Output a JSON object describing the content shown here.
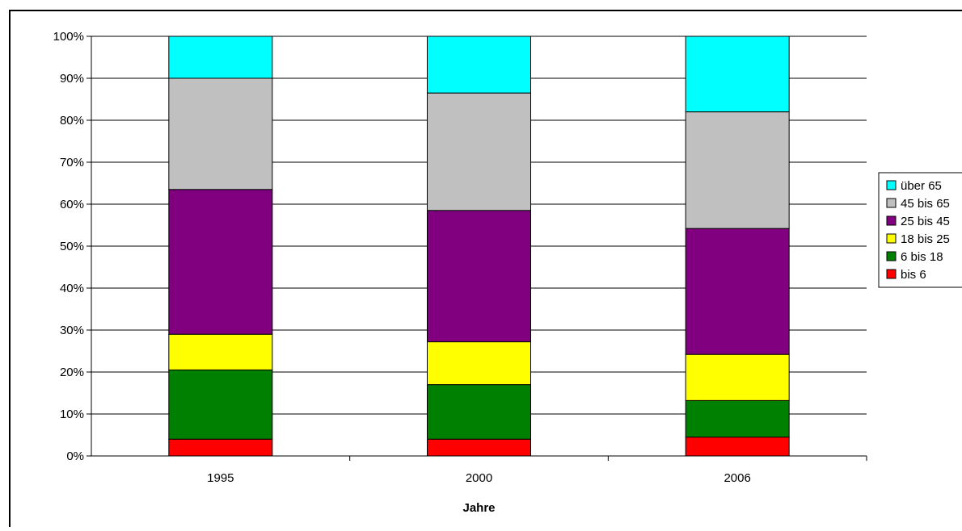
{
  "chart_data": {
    "type": "bar",
    "stacked": true,
    "normalized": true,
    "title": "",
    "xlabel": "Jahre",
    "ylabel": "",
    "ylim": [
      0,
      100
    ],
    "y_ticks": [
      "0%",
      "10%",
      "20%",
      "30%",
      "40%",
      "50%",
      "60%",
      "70%",
      "80%",
      "90%",
      "100%"
    ],
    "grid": true,
    "legend_position": "right",
    "categories": [
      "1995",
      "2000",
      "2006"
    ],
    "series": [
      {
        "name": "bis 6",
        "color": "#ff0000",
        "values": [
          4,
          4,
          4.5
        ]
      },
      {
        "name": "6 bis 18",
        "color": "#008000",
        "values": [
          16.5,
          13,
          8.7
        ]
      },
      {
        "name": "18 bis 25",
        "color": "#ffff00",
        "values": [
          8.5,
          10.2,
          11
        ]
      },
      {
        "name": "25 bis 45",
        "color": "#800080",
        "values": [
          34.5,
          31.3,
          30
        ]
      },
      {
        "name": "45 bis 65",
        "color": "#c0c0c0",
        "values": [
          26.5,
          28,
          27.8
        ]
      },
      {
        "name": "über 65",
        "color": "#00ffff",
        "values": [
          10,
          13.5,
          18
        ]
      }
    ]
  }
}
